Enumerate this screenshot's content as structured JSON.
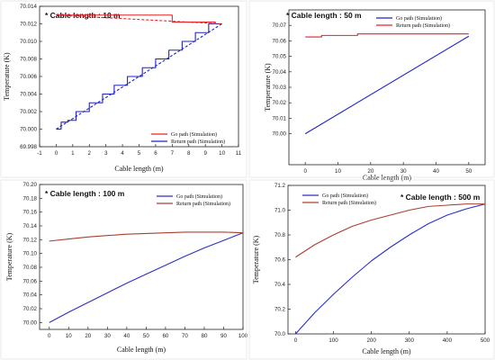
{
  "chart_data": [
    {
      "type": "line",
      "title": "* Cable length : 10 m",
      "xlabel": "Cable length (m)",
      "ylabel": "Temperature (K)",
      "xlim": [
        -1,
        11
      ],
      "ylim": [
        69.998,
        70.014
      ],
      "xticks": [
        "-1",
        "0",
        "1",
        "2",
        "3",
        "4",
        "5",
        "6",
        "7",
        "8",
        "9",
        "10",
        "11"
      ],
      "xtick_values": [
        -1,
        0,
        1,
        2,
        3,
        4,
        5,
        6,
        7,
        8,
        9,
        10,
        11
      ],
      "yticks": [
        "69.998",
        "70.000",
        "70.002",
        "70.004",
        "70.006",
        "70.008",
        "70.010",
        "70.012",
        "70.014"
      ],
      "ytick_values": [
        69.998,
        70.0,
        70.002,
        70.004,
        70.006,
        70.008,
        70.01,
        70.012,
        70.014
      ],
      "legend": "bottom-right",
      "series": [
        {
          "name": "Go path (Simulation)",
          "color": "#e8212a",
          "style": "solid",
          "x": [
            0,
            7,
            7,
            9.6,
            9.6,
            10
          ],
          "y": [
            70.013,
            70.013,
            70.0122,
            70.0122,
            70.012,
            70.012
          ]
        },
        {
          "name": "Return path (Simulation)",
          "color": "#1f22c8",
          "style": "solid",
          "x": [
            0,
            0.3,
            0.3,
            0.7,
            0.7,
            1.2,
            1.2,
            2.0,
            2.0,
            2.8,
            2.8,
            3.5,
            3.5,
            4.3,
            4.3,
            5.2,
            5.2,
            6.0,
            6.0,
            6.8,
            6.8,
            7.6,
            7.6,
            8.4,
            8.4,
            9.2,
            9.2,
            10
          ],
          "y": [
            70.0,
            70.0,
            70.0008,
            70.0008,
            70.001,
            70.001,
            70.002,
            70.002,
            70.003,
            70.003,
            70.004,
            70.004,
            70.005,
            70.005,
            70.006,
            70.006,
            70.007,
            70.007,
            70.008,
            70.008,
            70.009,
            70.009,
            70.01,
            70.01,
            70.011,
            70.011,
            70.012,
            70.012
          ]
        },
        {
          "color": "#e8212a",
          "style": "dashed",
          "x": [
            0,
            10
          ],
          "y": [
            70.013,
            70.012
          ]
        },
        {
          "color": "#1f22c8",
          "style": "dashed",
          "x": [
            0,
            10
          ],
          "y": [
            70.0,
            70.012
          ]
        }
      ]
    },
    {
      "type": "line",
      "title": "* Cable length : 50 m",
      "xlabel": "Cable length (m)",
      "ylabel": "Temperature (K)",
      "xlim": [
        -5,
        55
      ],
      "ylim": [
        69.98,
        70.08
      ],
      "xticks": [
        "0",
        "10",
        "20",
        "30",
        "40",
        "50"
      ],
      "xtick_values": [
        0,
        10,
        20,
        30,
        40,
        50
      ],
      "yticks": [
        "70.00",
        "70.01",
        "70.02",
        "70.03",
        "70.04",
        "70.05",
        "70.06",
        "70.07"
      ],
      "ytick_values": [
        70.0,
        70.01,
        70.02,
        70.03,
        70.04,
        70.05,
        70.06,
        70.07
      ],
      "legend": "top-right",
      "series": [
        {
          "name": "Go path (Simulation)",
          "color": "#1f22c8",
          "style": "solid",
          "x": [
            0,
            50
          ],
          "y": [
            70.0,
            70.063
          ]
        },
        {
          "name": "Return path (Simulation)",
          "color": "#e8212a",
          "style": "solid",
          "x": [
            0,
            5,
            5,
            16,
            16,
            50
          ],
          "y": [
            70.0625,
            70.0625,
            70.0635,
            70.0635,
            70.0645,
            70.0645
          ]
        }
      ]
    },
    {
      "type": "line",
      "title": "* Cable length : 100 m",
      "xlabel": "Cable length (m)",
      "ylabel": "Temperature (K)",
      "xlim": [
        -5,
        100
      ],
      "ylim": [
        69.99,
        70.2
      ],
      "xticks": [
        "0",
        "10",
        "20",
        "30",
        "40",
        "50",
        "60",
        "70",
        "80",
        "90",
        "100"
      ],
      "xtick_values": [
        0,
        10,
        20,
        30,
        40,
        50,
        60,
        70,
        80,
        90,
        100
      ],
      "yticks": [
        "70.00",
        "70.02",
        "70.04",
        "70.06",
        "70.08",
        "70.10",
        "70.12",
        "70.14",
        "70.16",
        "70.18",
        "70.20"
      ],
      "ytick_values": [
        70.0,
        70.02,
        70.04,
        70.06,
        70.08,
        70.1,
        70.12,
        70.14,
        70.16,
        70.18,
        70.2
      ],
      "legend": "top-center",
      "series": [
        {
          "name": "Go path (Simulation)",
          "color": "#2c2fc7",
          "style": "solid",
          "x": [
            0,
            10,
            20,
            30,
            40,
            50,
            60,
            70,
            80,
            90,
            100
          ],
          "y": [
            70.0,
            70.015,
            70.029,
            70.043,
            70.057,
            70.07,
            70.083,
            70.096,
            70.108,
            70.119,
            70.13
          ]
        },
        {
          "name": "Return path (Simulation)",
          "color": "#a8402e",
          "style": "solid",
          "x": [
            0,
            10,
            20,
            30,
            40,
            50,
            60,
            70,
            80,
            90,
            100
          ],
          "y": [
            70.118,
            70.121,
            70.124,
            70.126,
            70.128,
            70.129,
            70.13,
            70.131,
            70.131,
            70.131,
            70.13
          ]
        }
      ]
    },
    {
      "type": "line",
      "title": "* Cable length : 500 m",
      "xlabel": "Cable length (m)",
      "ylabel": "Temperature (K)",
      "xlim": [
        -20,
        500
      ],
      "ylim": [
        70.0,
        71.2
      ],
      "xticks": [
        "0",
        "100",
        "200",
        "300",
        "400",
        "500"
      ],
      "xtick_values": [
        0,
        100,
        200,
        300,
        400,
        500
      ],
      "yticks": [
        "70.0",
        "70.2",
        "70.4",
        "70.6",
        "70.8",
        "71.0",
        "71.2"
      ],
      "ytick_values": [
        70.0,
        70.2,
        70.4,
        70.6,
        70.8,
        71.0,
        71.2
      ],
      "legend": "top-left",
      "series": [
        {
          "name": "Go path (Simulation)",
          "color": "#2c2fc7",
          "style": "solid",
          "x": [
            0,
            50,
            100,
            150,
            200,
            250,
            300,
            350,
            400,
            450,
            500
          ],
          "y": [
            70.0,
            70.17,
            70.32,
            70.46,
            70.59,
            70.7,
            70.8,
            70.89,
            70.96,
            71.01,
            71.05
          ]
        },
        {
          "name": "Return path (Simulation)",
          "color": "#a8402e",
          "style": "solid",
          "x": [
            0,
            50,
            100,
            150,
            200,
            250,
            300,
            350,
            400,
            450,
            500
          ],
          "y": [
            70.62,
            70.72,
            70.8,
            70.87,
            70.92,
            70.96,
            71.0,
            71.03,
            71.04,
            71.05,
            71.05
          ]
        }
      ]
    }
  ]
}
